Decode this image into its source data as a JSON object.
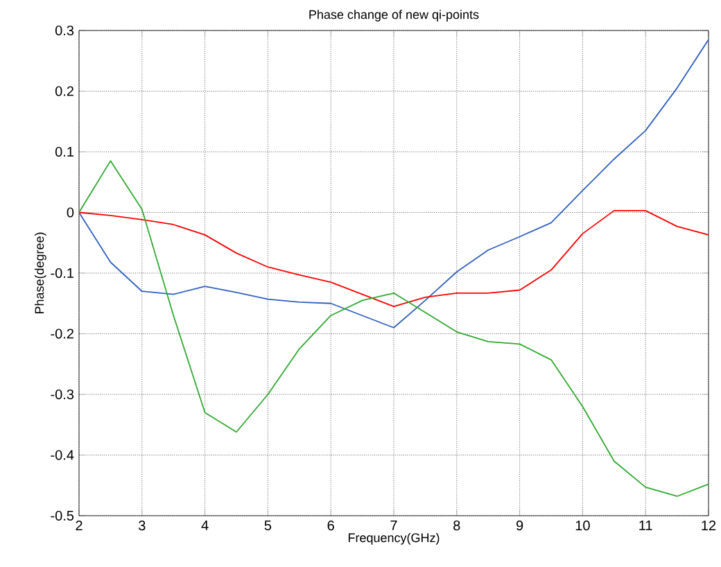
{
  "chart_data": {
    "type": "line",
    "title": "Phase change of new qi-points",
    "xlabel": "Frequency(GHz)",
    "ylabel": "Phase(degree)",
    "x": [
      2,
      2.5,
      3,
      3.5,
      4,
      4.5,
      5,
      5.5,
      6,
      6.5,
      7,
      7.5,
      8,
      8.5,
      9,
      9.5,
      10,
      10.5,
      11,
      11.5,
      12
    ],
    "series": [
      {
        "color": "#3060c0",
        "values": [
          0,
          -0.082,
          -0.13,
          -0.135,
          -0.122,
          -0.132,
          -0.143,
          -0.148,
          -0.15,
          -0.17,
          -0.19,
          -0.145,
          -0.098,
          -0.062,
          -0.04,
          -0.017,
          0.036,
          0.088,
          0.135,
          0.205,
          0.285
        ]
      },
      {
        "color": "#ff0000",
        "values": [
          0,
          -0.005,
          -0.012,
          -0.02,
          -0.037,
          -0.067,
          -0.09,
          -0.103,
          -0.115,
          -0.135,
          -0.155,
          -0.14,
          -0.133,
          -0.133,
          -0.128,
          -0.095,
          -0.035,
          0.003,
          0.003,
          -0.023,
          -0.037
        ]
      },
      {
        "color": "#30a830",
        "values": [
          0,
          0.085,
          0.005,
          -0.17,
          -0.33,
          -0.362,
          -0.3,
          -0.225,
          -0.17,
          -0.145,
          -0.133,
          -0.165,
          -0.197,
          -0.213,
          -0.217,
          -0.243,
          -0.32,
          -0.41,
          -0.453,
          -0.468,
          -0.448
        ]
      }
    ],
    "xlim": [
      2,
      12
    ],
    "ylim": [
      -0.5,
      0.3
    ],
    "xticks": [
      2,
      3,
      4,
      5,
      6,
      7,
      8,
      9,
      10,
      11,
      12
    ],
    "yticks": [
      -0.5,
      -0.4,
      -0.3,
      -0.2,
      -0.1,
      0,
      0.1,
      0.2,
      0.3
    ],
    "grid": true,
    "marker": "none",
    "line_style": "solid"
  }
}
